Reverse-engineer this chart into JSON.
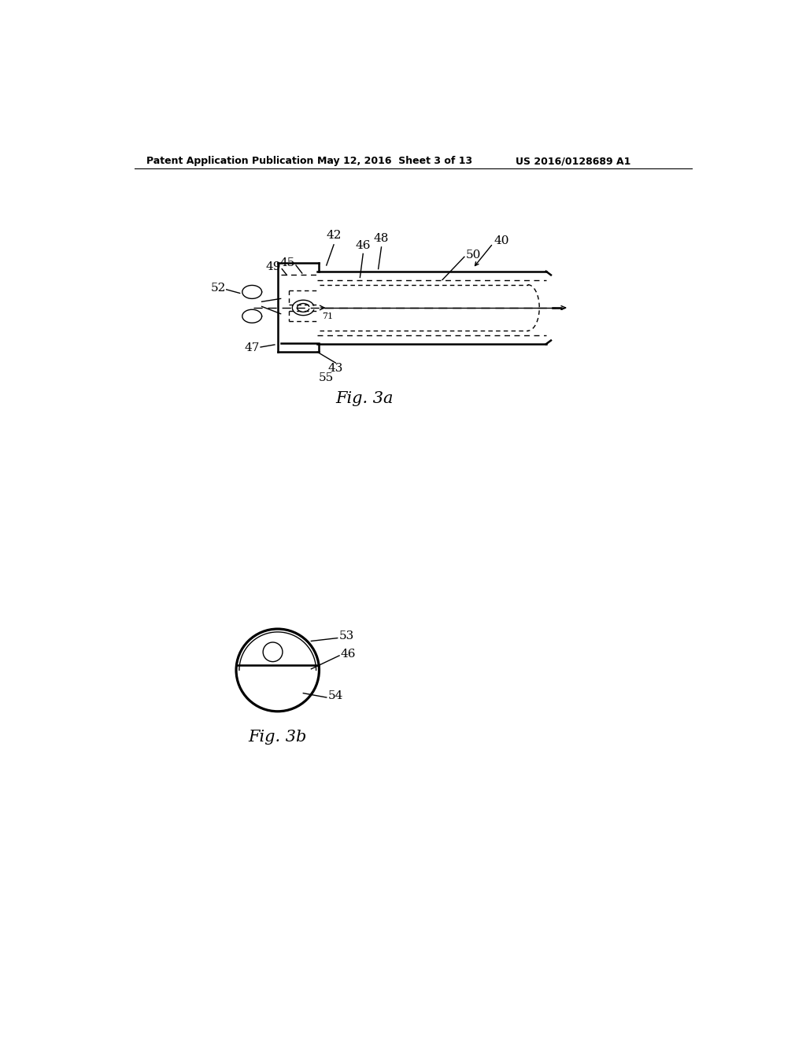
{
  "bg_color": "#ffffff",
  "line_color": "#000000",
  "header_text": "Patent Application Publication",
  "header_date": "May 12, 2016  Sheet 3 of 13",
  "header_patent": "US 2016/0128689 A1",
  "fig3a_label": "Fig. 3a",
  "fig3b_label": "Fig. 3b"
}
